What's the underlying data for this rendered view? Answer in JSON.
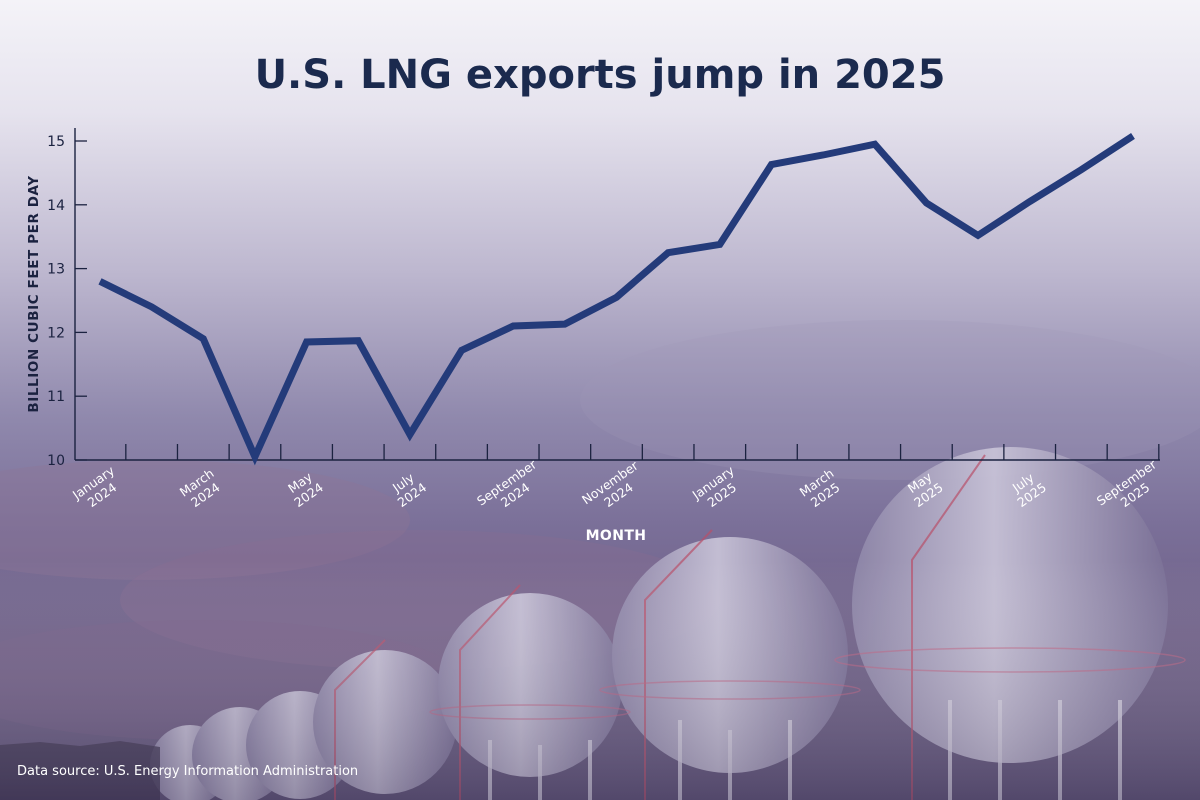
{
  "chart_data": {
    "type": "line",
    "title": "U.S. LNG exports jump in 2025",
    "ylabel": "BILLION CUBIC FEET PER DAY",
    "xlabel": "MONTH",
    "ylim": [
      10,
      15.2
    ],
    "yticks": [
      "10",
      "11",
      "12",
      "13",
      "14",
      "15"
    ],
    "grid": false,
    "x": [
      "January 2024",
      "February 2024",
      "March 2024",
      "April 2024",
      "May 2024",
      "June 2024",
      "July 2024",
      "August 2024",
      "September 2024",
      "October 2024",
      "November 2024",
      "December 2024",
      "January 2025",
      "February 2025",
      "March 2025",
      "April 2025",
      "May 2025",
      "June 2025",
      "July 2025",
      "August 2025",
      "September 2025"
    ],
    "xtick_labels": [
      {
        "index": 0,
        "line1": "January",
        "line2": "2024"
      },
      {
        "index": 2,
        "line1": "March",
        "line2": "2024"
      },
      {
        "index": 4,
        "line1": "May",
        "line2": "2024"
      },
      {
        "index": 6,
        "line1": "July",
        "line2": "2024"
      },
      {
        "index": 8,
        "line1": "September",
        "line2": "2024"
      },
      {
        "index": 10,
        "line1": "November",
        "line2": "2024"
      },
      {
        "index": 12,
        "line1": "January",
        "line2": "2025"
      },
      {
        "index": 14,
        "line1": "March",
        "line2": "2025"
      },
      {
        "index": 16,
        "line1": "May",
        "line2": "2025"
      },
      {
        "index": 18,
        "line1": "July",
        "line2": "2025"
      },
      {
        "index": 20,
        "line1": "September",
        "line2": "2025"
      }
    ],
    "series": [
      {
        "name": "U.S. LNG exports",
        "color": "#243b7a",
        "values": [
          12.8,
          12.4,
          11.9,
          10.05,
          11.85,
          11.87,
          10.4,
          11.72,
          12.1,
          12.13,
          12.55,
          13.25,
          13.38,
          14.63,
          14.78,
          14.95,
          14.03,
          13.52,
          14.05,
          14.55,
          15.08
        ]
      }
    ]
  },
  "source": "Data source: U.S. Energy Information Administration"
}
